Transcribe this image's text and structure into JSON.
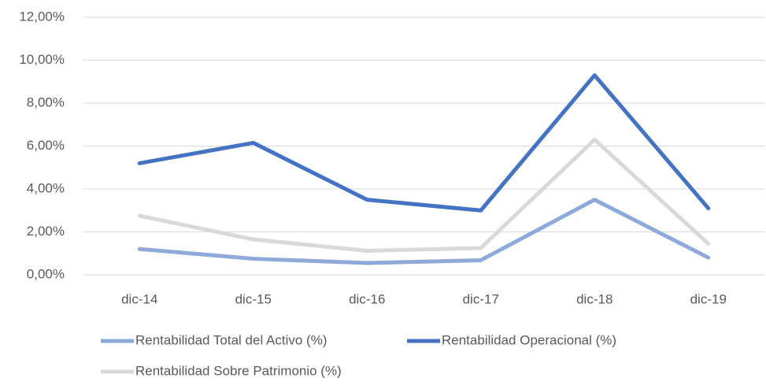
{
  "chart_data": {
    "type": "line",
    "categories": [
      "dic-14",
      "dic-15",
      "dic-16",
      "dic-17",
      "dic-18",
      "dic-19"
    ],
    "series": [
      {
        "name": "Rentabilidad Total del Activo (%)",
        "color": "#8eaadb",
        "values": [
          1.2,
          0.75,
          0.55,
          0.68,
          3.5,
          0.8
        ]
      },
      {
        "name": "Rentabilidad Operacional (%)",
        "color": "#4472c4",
        "values": [
          5.2,
          6.15,
          3.5,
          3.0,
          9.3,
          3.1
        ]
      },
      {
        "name": "Rentabilidad Sobre Patrimonio (%)",
        "color": "#d9d9d9",
        "values": [
          2.75,
          1.65,
          1.12,
          1.25,
          6.3,
          1.45
        ]
      }
    ],
    "ylim": [
      0,
      12
    ],
    "yticks": [
      {
        "value": 0,
        "label": "0,00%"
      },
      {
        "value": 2,
        "label": "2,00%"
      },
      {
        "value": 4,
        "label": "4,00%"
      },
      {
        "value": 6,
        "label": "6,00%"
      },
      {
        "value": 8,
        "label": "8,00%"
      },
      {
        "value": 10,
        "label": "10,00%"
      },
      {
        "value": 12,
        "label": "12,00%"
      }
    ],
    "grid": true
  }
}
